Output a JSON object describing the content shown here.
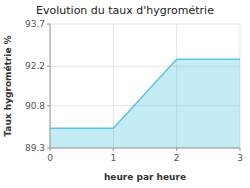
{
  "chart_data": {
    "type": "area",
    "title": "Evolution du taux d'hygrométrie",
    "xlabel": "heure par heure",
    "ylabel": "Taux hygrométrie %",
    "x": [
      0,
      1,
      2,
      3
    ],
    "values": [
      90.0,
      90.0,
      92.45,
      92.45
    ],
    "xlim": [
      0,
      3
    ],
    "ylim": [
      89.3,
      93.7
    ],
    "xticks": [
      0,
      1,
      2,
      3
    ],
    "yticks": [
      89.3,
      90.8,
      92.2,
      93.7
    ],
    "grid": true,
    "color": "#56c8e0"
  }
}
